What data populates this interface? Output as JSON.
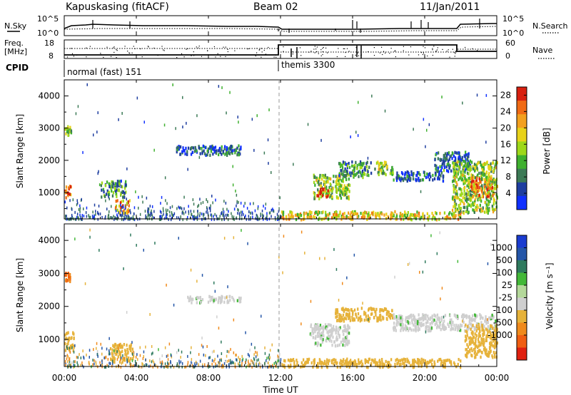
{
  "header": {
    "station": "Kapuskasing (fitACF)",
    "beam": "Beam 02",
    "date": "11/Jan/2011"
  },
  "strips": {
    "nsky_label": "N.Sky",
    "nsky_ticks": [
      "10^5",
      "10^0"
    ],
    "nsearch_label": "N.Search",
    "nsearch_ticks": [
      "10^5",
      "10^0"
    ],
    "freq_label": "Freq.",
    "freq_unit": "[MHz]",
    "freq_ticks": [
      "18",
      "8"
    ],
    "nave_label": "Nave",
    "nave_ticks": [
      "60",
      "0"
    ],
    "cpid_label": "CPID",
    "cpid_segments": [
      {
        "label": "normal (fast) 151",
        "start_hour": 0,
        "end_hour": 12
      },
      {
        "label": "themis 3300",
        "start_hour": 12,
        "end_hour": 24
      }
    ]
  },
  "axes": {
    "x_label": "Time UT",
    "x_ticks": [
      "00:00",
      "04:00",
      "08:00",
      "12:00",
      "16:00",
      "20:00",
      "00:00"
    ],
    "y_label": "Slant Range [km]",
    "y_ticks": [
      "1000",
      "2000",
      "3000",
      "4000"
    ]
  },
  "colorbars": {
    "power": {
      "label": "Power [dB]",
      "ticks": [
        "4",
        "8",
        "12",
        "16",
        "20",
        "24",
        "28"
      ],
      "colors": [
        "#1030ff",
        "#1e3ea0",
        "#3c7a56",
        "#3fb02f",
        "#9ed81a",
        "#e8d21a",
        "#f3a01e",
        "#f06a14",
        "#d82010"
      ]
    },
    "velocity": {
      "label": "Velocity [m s⁻¹]",
      "ticks": [
        "1000",
        "500",
        "100",
        "25",
        "-25",
        "-100",
        "-500",
        "-1000"
      ],
      "colors": [
        "#1a3cd0",
        "#2456a8",
        "#2f7a5e",
        "#43b838",
        "#b4d89a",
        "#cfcfcf",
        "#e6b23a",
        "#f08a1c",
        "#f05e12",
        "#e02010"
      ]
    }
  },
  "chart_data": [
    {
      "type": "heatmap",
      "title": "Power [dB]",
      "xlabel": "Time UT",
      "ylabel": "Slant Range [km]",
      "xlim": [
        0,
        24
      ],
      "ylim": [
        180,
        4500
      ],
      "clim": [
        0,
        30
      ],
      "features": [
        {
          "t0": 0.0,
          "t1": 0.35,
          "r0": 850,
          "r1": 1250,
          "value": 26
        },
        {
          "t0": 0.0,
          "t1": 0.35,
          "r0": 2800,
          "r1": 3100,
          "value": 14
        },
        {
          "t0": 2.0,
          "t1": 3.4,
          "r0": 900,
          "r1": 1400,
          "value": 10
        },
        {
          "t0": 2.8,
          "t1": 3.6,
          "r0": 400,
          "r1": 800,
          "value": 22
        },
        {
          "t0": 6.2,
          "t1": 9.8,
          "r0": 2200,
          "r1": 2500,
          "value": 6
        },
        {
          "t0": 12.0,
          "t1": 22.0,
          "r0": 200,
          "r1": 450,
          "value": 18
        },
        {
          "t0": 13.8,
          "t1": 15.8,
          "r0": 850,
          "r1": 1600,
          "value": 14
        },
        {
          "t0": 14.0,
          "t1": 14.6,
          "r0": 900,
          "r1": 1200,
          "value": 28
        },
        {
          "t0": 15.2,
          "t1": 17.0,
          "r0": 1500,
          "r1": 2000,
          "value": 9
        },
        {
          "t0": 17.2,
          "t1": 18.2,
          "r0": 1600,
          "r1": 2000,
          "value": 14
        },
        {
          "t0": 18.2,
          "t1": 21.0,
          "r0": 1400,
          "r1": 1700,
          "value": 6
        },
        {
          "t0": 20.5,
          "t1": 22.5,
          "r0": 1700,
          "r1": 2300,
          "value": 7
        },
        {
          "t0": 21.5,
          "t1": 24.0,
          "r0": 400,
          "r1": 2000,
          "value": 14
        },
        {
          "t0": 22.5,
          "t1": 23.8,
          "r0": 900,
          "r1": 1500,
          "value": 22
        }
      ]
    },
    {
      "type": "heatmap",
      "title": "Velocity [m s⁻¹]",
      "xlabel": "Time UT",
      "ylabel": "Slant Range [km]",
      "xlim": [
        0,
        24
      ],
      "ylim": [
        180,
        4500
      ],
      "clim": [
        -1000,
        1000
      ],
      "features": [
        {
          "t0": 0.0,
          "t1": 0.35,
          "r0": 2800,
          "r1": 3100,
          "value": -1000
        },
        {
          "t0": 0.0,
          "t1": 0.5,
          "r0": 700,
          "r1": 1250,
          "value": -300
        },
        {
          "t0": 2.5,
          "t1": 3.8,
          "r0": 350,
          "r1": 900,
          "value": -200
        },
        {
          "t0": 6.8,
          "t1": 9.8,
          "r0": 2150,
          "r1": 2350,
          "value": 0
        },
        {
          "t0": 12.0,
          "t1": 22.0,
          "r0": 200,
          "r1": 450,
          "value": -300
        },
        {
          "t0": 13.6,
          "t1": 15.8,
          "r0": 850,
          "r1": 1500,
          "value": 0
        },
        {
          "t0": 15.0,
          "t1": 17.2,
          "r0": 1600,
          "r1": 2000,
          "value": -300
        },
        {
          "t0": 17.2,
          "t1": 18.2,
          "r0": 1600,
          "r1": 2000,
          "value": -300
        },
        {
          "t0": 18.2,
          "t1": 24.0,
          "r0": 1300,
          "r1": 1800,
          "value": 0
        },
        {
          "t0": 22.2,
          "t1": 24.0,
          "r0": 500,
          "r1": 1500,
          "value": -300
        }
      ]
    }
  ]
}
